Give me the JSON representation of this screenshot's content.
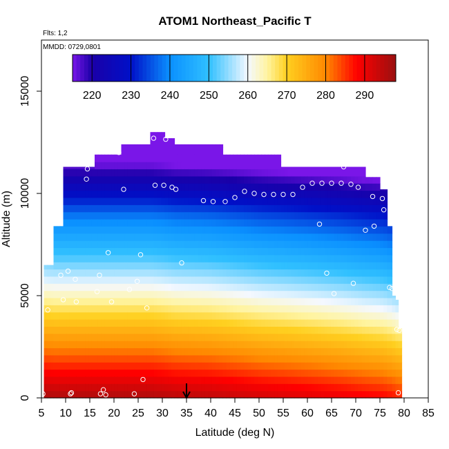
{
  "chart_data": {
    "type": "heatmap",
    "title": "ATOM1 Northeast_Pacific T",
    "flights_note": "Flts: 1,2",
    "date_note": "MMDD: 0729,0801",
    "xlabel": "Latitude (deg N)",
    "ylabel": "Altitude (m)",
    "xlim": [
      5,
      85
    ],
    "ylim": [
      0,
      17500
    ],
    "xticks": [
      5,
      10,
      15,
      20,
      25,
      30,
      35,
      40,
      45,
      50,
      55,
      60,
      65,
      70,
      75,
      80,
      85
    ],
    "yticks": [
      0,
      5000,
      10000,
      15000
    ],
    "colorbar": {
      "min": 215,
      "max": 298,
      "ticks": [
        220,
        230,
        240,
        250,
        260,
        270,
        280,
        290
      ]
    },
    "colors": {
      "c215": "#7a16e8",
      "c220": "#1a00a8",
      "c230": "#0010c8",
      "c240": "#0a90ff",
      "c250": "#30c0ff",
      "c260": "#f4f8ff",
      "c265": "#fff4a0",
      "c270": "#ffd020",
      "c280": "#ff8800",
      "c288": "#ff0000",
      "c298": "#9a1010"
    },
    "marker_latitude": 35,
    "profiles": [
      {
        "lat": 5.5,
        "ztop": 6500,
        "t_sfc": 296.5
      },
      {
        "lat": 7.5,
        "ztop": 8400,
        "t_sfc": 296.0
      },
      {
        "lat": 9.5,
        "ztop": 11300,
        "t_sfc": 296.0
      },
      {
        "lat": 13.5,
        "ztop": 11300,
        "t_sfc": 296.0
      },
      {
        "lat": 16.0,
        "ztop": 11900,
        "t_sfc": 296.0
      },
      {
        "lat": 21.5,
        "ztop": 12400,
        "t_sfc": 296.0
      },
      {
        "lat": 27.5,
        "ztop": 13000,
        "t_sfc": 296.0
      },
      {
        "lat": 30.5,
        "ztop": 12700,
        "t_sfc": 295.5
      },
      {
        "lat": 32.5,
        "ztop": 12400,
        "t_sfc": 295.0
      },
      {
        "lat": 39.5,
        "ztop": 12400,
        "t_sfc": 294.5
      },
      {
        "lat": 42.5,
        "ztop": 11900,
        "t_sfc": 294.0
      },
      {
        "lat": 50.5,
        "ztop": 11900,
        "t_sfc": 292.5
      },
      {
        "lat": 54.5,
        "ztop": 11300,
        "t_sfc": 292.0
      },
      {
        "lat": 61.5,
        "ztop": 11300,
        "t_sfc": 291.0
      },
      {
        "lat": 67.5,
        "ztop": 11300,
        "t_sfc": 290.0
      },
      {
        "lat": 72.0,
        "ztop": 10800,
        "t_sfc": 289.0
      },
      {
        "lat": 75.0,
        "ztop": 10200,
        "t_sfc": 288.5
      },
      {
        "lat": 76.5,
        "ztop": 8400,
        "t_sfc": 288.0
      },
      {
        "lat": 77.5,
        "ztop": 5000,
        "t_sfc": 287.5
      },
      {
        "lat": 78.2,
        "ztop": 4800,
        "t_sfc": 287.0
      },
      {
        "lat": 78.8,
        "ztop": 3400,
        "t_sfc": 286.5
      }
    ],
    "observations": [
      {
        "lat": 5.3,
        "alt": 200
      },
      {
        "lat": 6.3,
        "alt": 4300
      },
      {
        "lat": 7.5,
        "alt": 10500
      },
      {
        "lat": 8.0,
        "alt": 11200
      },
      {
        "lat": 9.0,
        "alt": 6000
      },
      {
        "lat": 9.5,
        "alt": 4800
      },
      {
        "lat": 10.5,
        "alt": 6200
      },
      {
        "lat": 11.0,
        "alt": 200
      },
      {
        "lat": 11.2,
        "alt": 250
      },
      {
        "lat": 12.0,
        "alt": 5800
      },
      {
        "lat": 12.2,
        "alt": 4700
      },
      {
        "lat": 14.3,
        "alt": 10700
      },
      {
        "lat": 14.5,
        "alt": 11200
      },
      {
        "lat": 16.5,
        "alt": 5200
      },
      {
        "lat": 17.0,
        "alt": 6000
      },
      {
        "lat": 17.2,
        "alt": 200
      },
      {
        "lat": 17.8,
        "alt": 400
      },
      {
        "lat": 18.3,
        "alt": 150
      },
      {
        "lat": 18.8,
        "alt": 7100
      },
      {
        "lat": 19.5,
        "alt": 4700
      },
      {
        "lat": 21.0,
        "alt": 12000
      },
      {
        "lat": 22.0,
        "alt": 10200
      },
      {
        "lat": 23.2,
        "alt": 5300
      },
      {
        "lat": 24.2,
        "alt": 200
      },
      {
        "lat": 24.8,
        "alt": 5700
      },
      {
        "lat": 25.5,
        "alt": 7000
      },
      {
        "lat": 26.0,
        "alt": 900
      },
      {
        "lat": 26.8,
        "alt": 4400
      },
      {
        "lat": 28.2,
        "alt": 12700
      },
      {
        "lat": 28.5,
        "alt": 10400
      },
      {
        "lat": 30.3,
        "alt": 10400
      },
      {
        "lat": 30.7,
        "alt": 12650
      },
      {
        "lat": 32.0,
        "alt": 10300
      },
      {
        "lat": 32.8,
        "alt": 10200
      },
      {
        "lat": 34.0,
        "alt": 6600
      },
      {
        "lat": 38.5,
        "alt": 9650
      },
      {
        "lat": 40.5,
        "alt": 9600
      },
      {
        "lat": 43.0,
        "alt": 9600
      },
      {
        "lat": 45.0,
        "alt": 9800
      },
      {
        "lat": 47.0,
        "alt": 10100
      },
      {
        "lat": 49.0,
        "alt": 10000
      },
      {
        "lat": 51.0,
        "alt": 9950
      },
      {
        "lat": 53.0,
        "alt": 9950
      },
      {
        "lat": 55.0,
        "alt": 9950
      },
      {
        "lat": 57.0,
        "alt": 9950
      },
      {
        "lat": 59.0,
        "alt": 10300
      },
      {
        "lat": 61.0,
        "alt": 10500
      },
      {
        "lat": 63.0,
        "alt": 10500
      },
      {
        "lat": 62.5,
        "alt": 8500
      },
      {
        "lat": 64.0,
        "alt": 6100
      },
      {
        "lat": 65.0,
        "alt": 10500
      },
      {
        "lat": 65.5,
        "alt": 5100
      },
      {
        "lat": 67.0,
        "alt": 10500
      },
      {
        "lat": 67.5,
        "alt": 11300
      },
      {
        "lat": 69.0,
        "alt": 10450
      },
      {
        "lat": 69.5,
        "alt": 5600
      },
      {
        "lat": 70.5,
        "alt": 10300
      },
      {
        "lat": 72.0,
        "alt": 8200
      },
      {
        "lat": 73.5,
        "alt": 9850
      },
      {
        "lat": 73.8,
        "alt": 8400
      },
      {
        "lat": 75.5,
        "alt": 9750
      },
      {
        "lat": 75.8,
        "alt": 9200
      },
      {
        "lat": 77.0,
        "alt": 5400
      },
      {
        "lat": 77.5,
        "alt": 5350
      },
      {
        "lat": 78.5,
        "alt": 3350
      },
      {
        "lat": 79.0,
        "alt": 3300
      },
      {
        "lat": 78.8,
        "alt": 250
      }
    ]
  }
}
